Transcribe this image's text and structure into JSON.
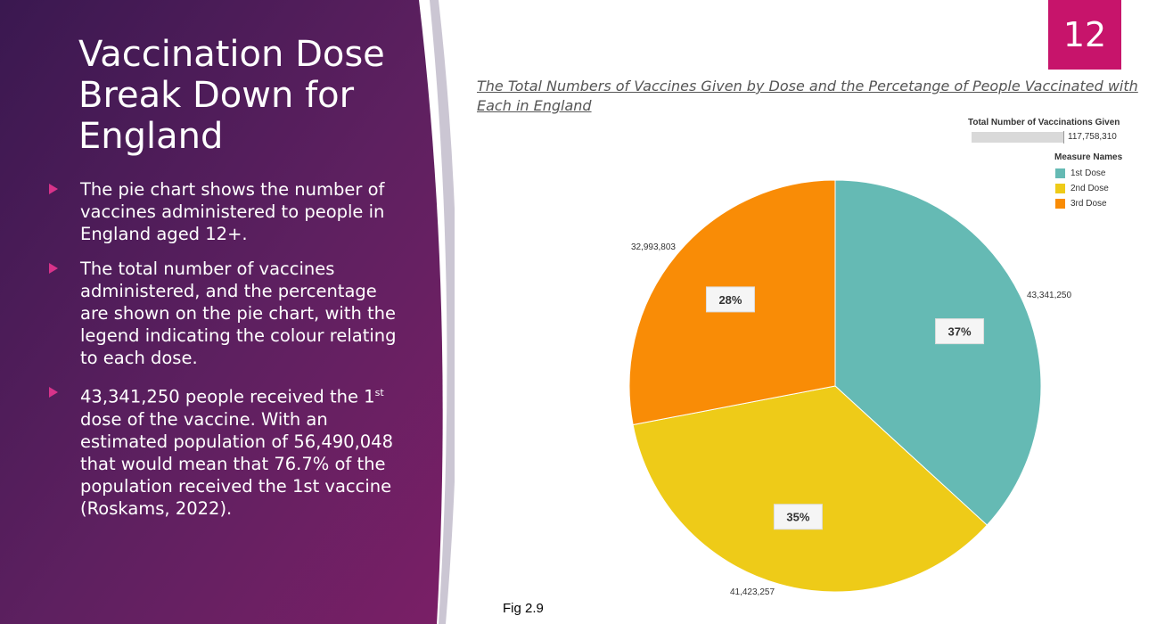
{
  "slide": {
    "title": "Vaccination Dose Break Down for England",
    "page_number": "12",
    "fig_label": "Fig 2.9",
    "bullets": [
      {
        "text": "The pie chart shows the number of vaccines administered to people in England aged 12+."
      },
      {
        "text": "The total number of vaccines administered, and the percentage are shown on the pie chart, with the legend indicating the colour relating to each dose."
      },
      {
        "text_before": "43,341,250 people received the 1",
        "sup": "st",
        "text_after": " dose of the vaccine. With an estimated population of 56,490,048 that would mean that 76.7% of the population received the 1st vaccine (Roskams, 2022)."
      }
    ],
    "colors": {
      "accent": "#c7146b",
      "panel_dark": "#3d1a4e",
      "panel_mid": "#6a2363"
    }
  },
  "chart_data": {
    "type": "pie",
    "title": "The Total Numbers of Vaccines Given by Dose and the Percetange of People Vaccinated with Each in England",
    "size_legend": {
      "title": "Total Number of Vaccinations Given",
      "value": "117,758,310"
    },
    "legend_title": "Measure Names",
    "legend_placement": "top-right",
    "slices": [
      {
        "name": "1st Dose",
        "value": 43341250,
        "value_label": "43,341,250",
        "percent_label": "37%",
        "color": "#65bab4"
      },
      {
        "name": "2nd Dose",
        "value": 41423257,
        "value_label": "41,423,257",
        "percent_label": "35%",
        "color": "#eecb18"
      },
      {
        "name": "3rd Dose",
        "value": 32993803,
        "value_label": "32,993,803",
        "percent_label": "28%",
        "color": "#f98c06"
      }
    ]
  }
}
